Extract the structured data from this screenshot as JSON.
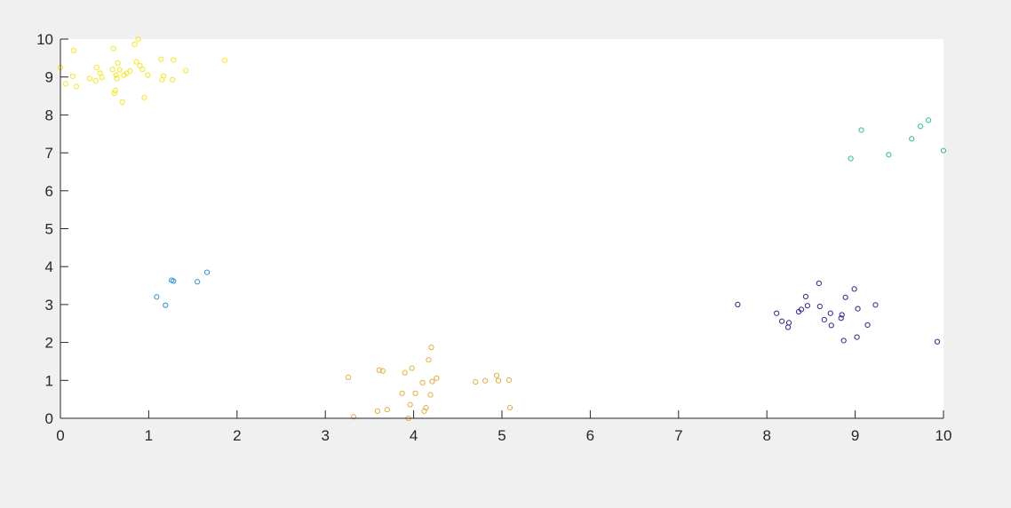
{
  "chart_data": {
    "type": "scatter",
    "title": "",
    "xlabel": "",
    "ylabel": "",
    "xlim": [
      0,
      10
    ],
    "ylim": [
      0,
      10
    ],
    "grid": false,
    "x_ticks": [
      "0",
      "1",
      "2",
      "3",
      "4",
      "5",
      "6",
      "7",
      "8",
      "9",
      "10"
    ],
    "y_ticks": [
      "0",
      "1",
      "2",
      "3",
      "4",
      "5",
      "6",
      "7",
      "8",
      "9",
      "10"
    ],
    "series": [
      {
        "color": "#f2e81c",
        "points": [
          [
            0.0,
            9.25
          ],
          [
            0.06,
            8.82
          ],
          [
            0.14,
            9.02
          ],
          [
            0.15,
            9.7
          ],
          [
            0.18,
            8.75
          ],
          [
            0.33,
            8.96
          ],
          [
            0.4,
            8.9
          ],
          [
            0.41,
            9.25
          ],
          [
            0.45,
            9.1
          ],
          [
            0.47,
            8.99
          ],
          [
            0.59,
            9.2
          ],
          [
            0.6,
            9.75
          ],
          [
            0.61,
            8.57
          ],
          [
            0.62,
            8.64
          ],
          [
            0.63,
            9.05
          ],
          [
            0.64,
            8.96
          ],
          [
            0.65,
            9.37
          ],
          [
            0.67,
            9.19
          ],
          [
            0.7,
            8.34
          ],
          [
            0.72,
            9.05
          ],
          [
            0.75,
            9.1
          ],
          [
            0.79,
            9.16
          ],
          [
            0.84,
            9.86
          ],
          [
            0.86,
            9.4
          ],
          [
            0.88,
            10.0
          ],
          [
            0.9,
            9.3
          ],
          [
            0.93,
            9.2
          ],
          [
            0.95,
            8.46
          ],
          [
            0.99,
            9.05
          ],
          [
            1.14,
            9.47
          ],
          [
            1.15,
            8.93
          ],
          [
            1.17,
            9.03
          ],
          [
            1.27,
            8.93
          ],
          [
            1.28,
            9.45
          ],
          [
            1.42,
            9.17
          ],
          [
            1.86,
            9.44
          ]
        ]
      },
      {
        "color": "#2a95d8",
        "points": [
          [
            1.09,
            3.2
          ],
          [
            1.19,
            2.98
          ],
          [
            1.26,
            3.64
          ],
          [
            1.28,
            3.62
          ],
          [
            1.55,
            3.6
          ],
          [
            1.66,
            3.85
          ]
        ]
      },
      {
        "color": "#e2ae3c",
        "points": [
          [
            3.26,
            1.08
          ],
          [
            3.32,
            0.04
          ],
          [
            3.59,
            0.19
          ],
          [
            3.61,
            1.27
          ],
          [
            3.65,
            1.25
          ],
          [
            3.7,
            0.23
          ],
          [
            3.87,
            0.66
          ],
          [
            3.9,
            1.2
          ],
          [
            3.94,
            0.0
          ],
          [
            3.96,
            0.36
          ],
          [
            3.98,
            1.32
          ],
          [
            4.02,
            0.66
          ],
          [
            4.1,
            0.94
          ],
          [
            4.12,
            0.19
          ],
          [
            4.14,
            0.28
          ],
          [
            4.17,
            1.54
          ],
          [
            4.19,
            0.62
          ],
          [
            4.2,
            1.87
          ],
          [
            4.21,
            0.97
          ],
          [
            4.26,
            1.06
          ],
          [
            4.7,
            0.96
          ],
          [
            4.81,
            0.99
          ],
          [
            4.94,
            1.13
          ],
          [
            4.96,
            0.99
          ],
          [
            5.08,
            1.01
          ],
          [
            5.09,
            0.28
          ]
        ]
      },
      {
        "color": "#2bbd9a",
        "points": [
          [
            8.95,
            6.85
          ],
          [
            9.07,
            7.6
          ],
          [
            9.38,
            6.95
          ],
          [
            9.64,
            7.37
          ],
          [
            9.74,
            7.7
          ],
          [
            9.83,
            7.86
          ],
          [
            10.0,
            7.06
          ]
        ]
      },
      {
        "color": "#33248f",
        "points": [
          [
            7.67,
            3.0
          ],
          [
            8.11,
            2.77
          ],
          [
            8.17,
            2.56
          ],
          [
            8.24,
            2.4
          ],
          [
            8.25,
            2.52
          ],
          [
            8.36,
            2.81
          ],
          [
            8.39,
            2.87
          ],
          [
            8.44,
            3.21
          ],
          [
            8.46,
            2.97
          ],
          [
            8.59,
            3.56
          ],
          [
            8.6,
            2.95
          ],
          [
            8.65,
            2.6
          ],
          [
            8.72,
            2.77
          ],
          [
            8.73,
            2.45
          ],
          [
            8.84,
            2.64
          ],
          [
            8.85,
            2.73
          ],
          [
            8.87,
            2.05
          ],
          [
            8.89,
            3.19
          ],
          [
            8.99,
            3.41
          ],
          [
            9.02,
            2.14
          ],
          [
            9.03,
            2.89
          ],
          [
            9.14,
            2.46
          ],
          [
            9.23,
            2.99
          ],
          [
            9.93,
            2.02
          ]
        ]
      }
    ]
  }
}
